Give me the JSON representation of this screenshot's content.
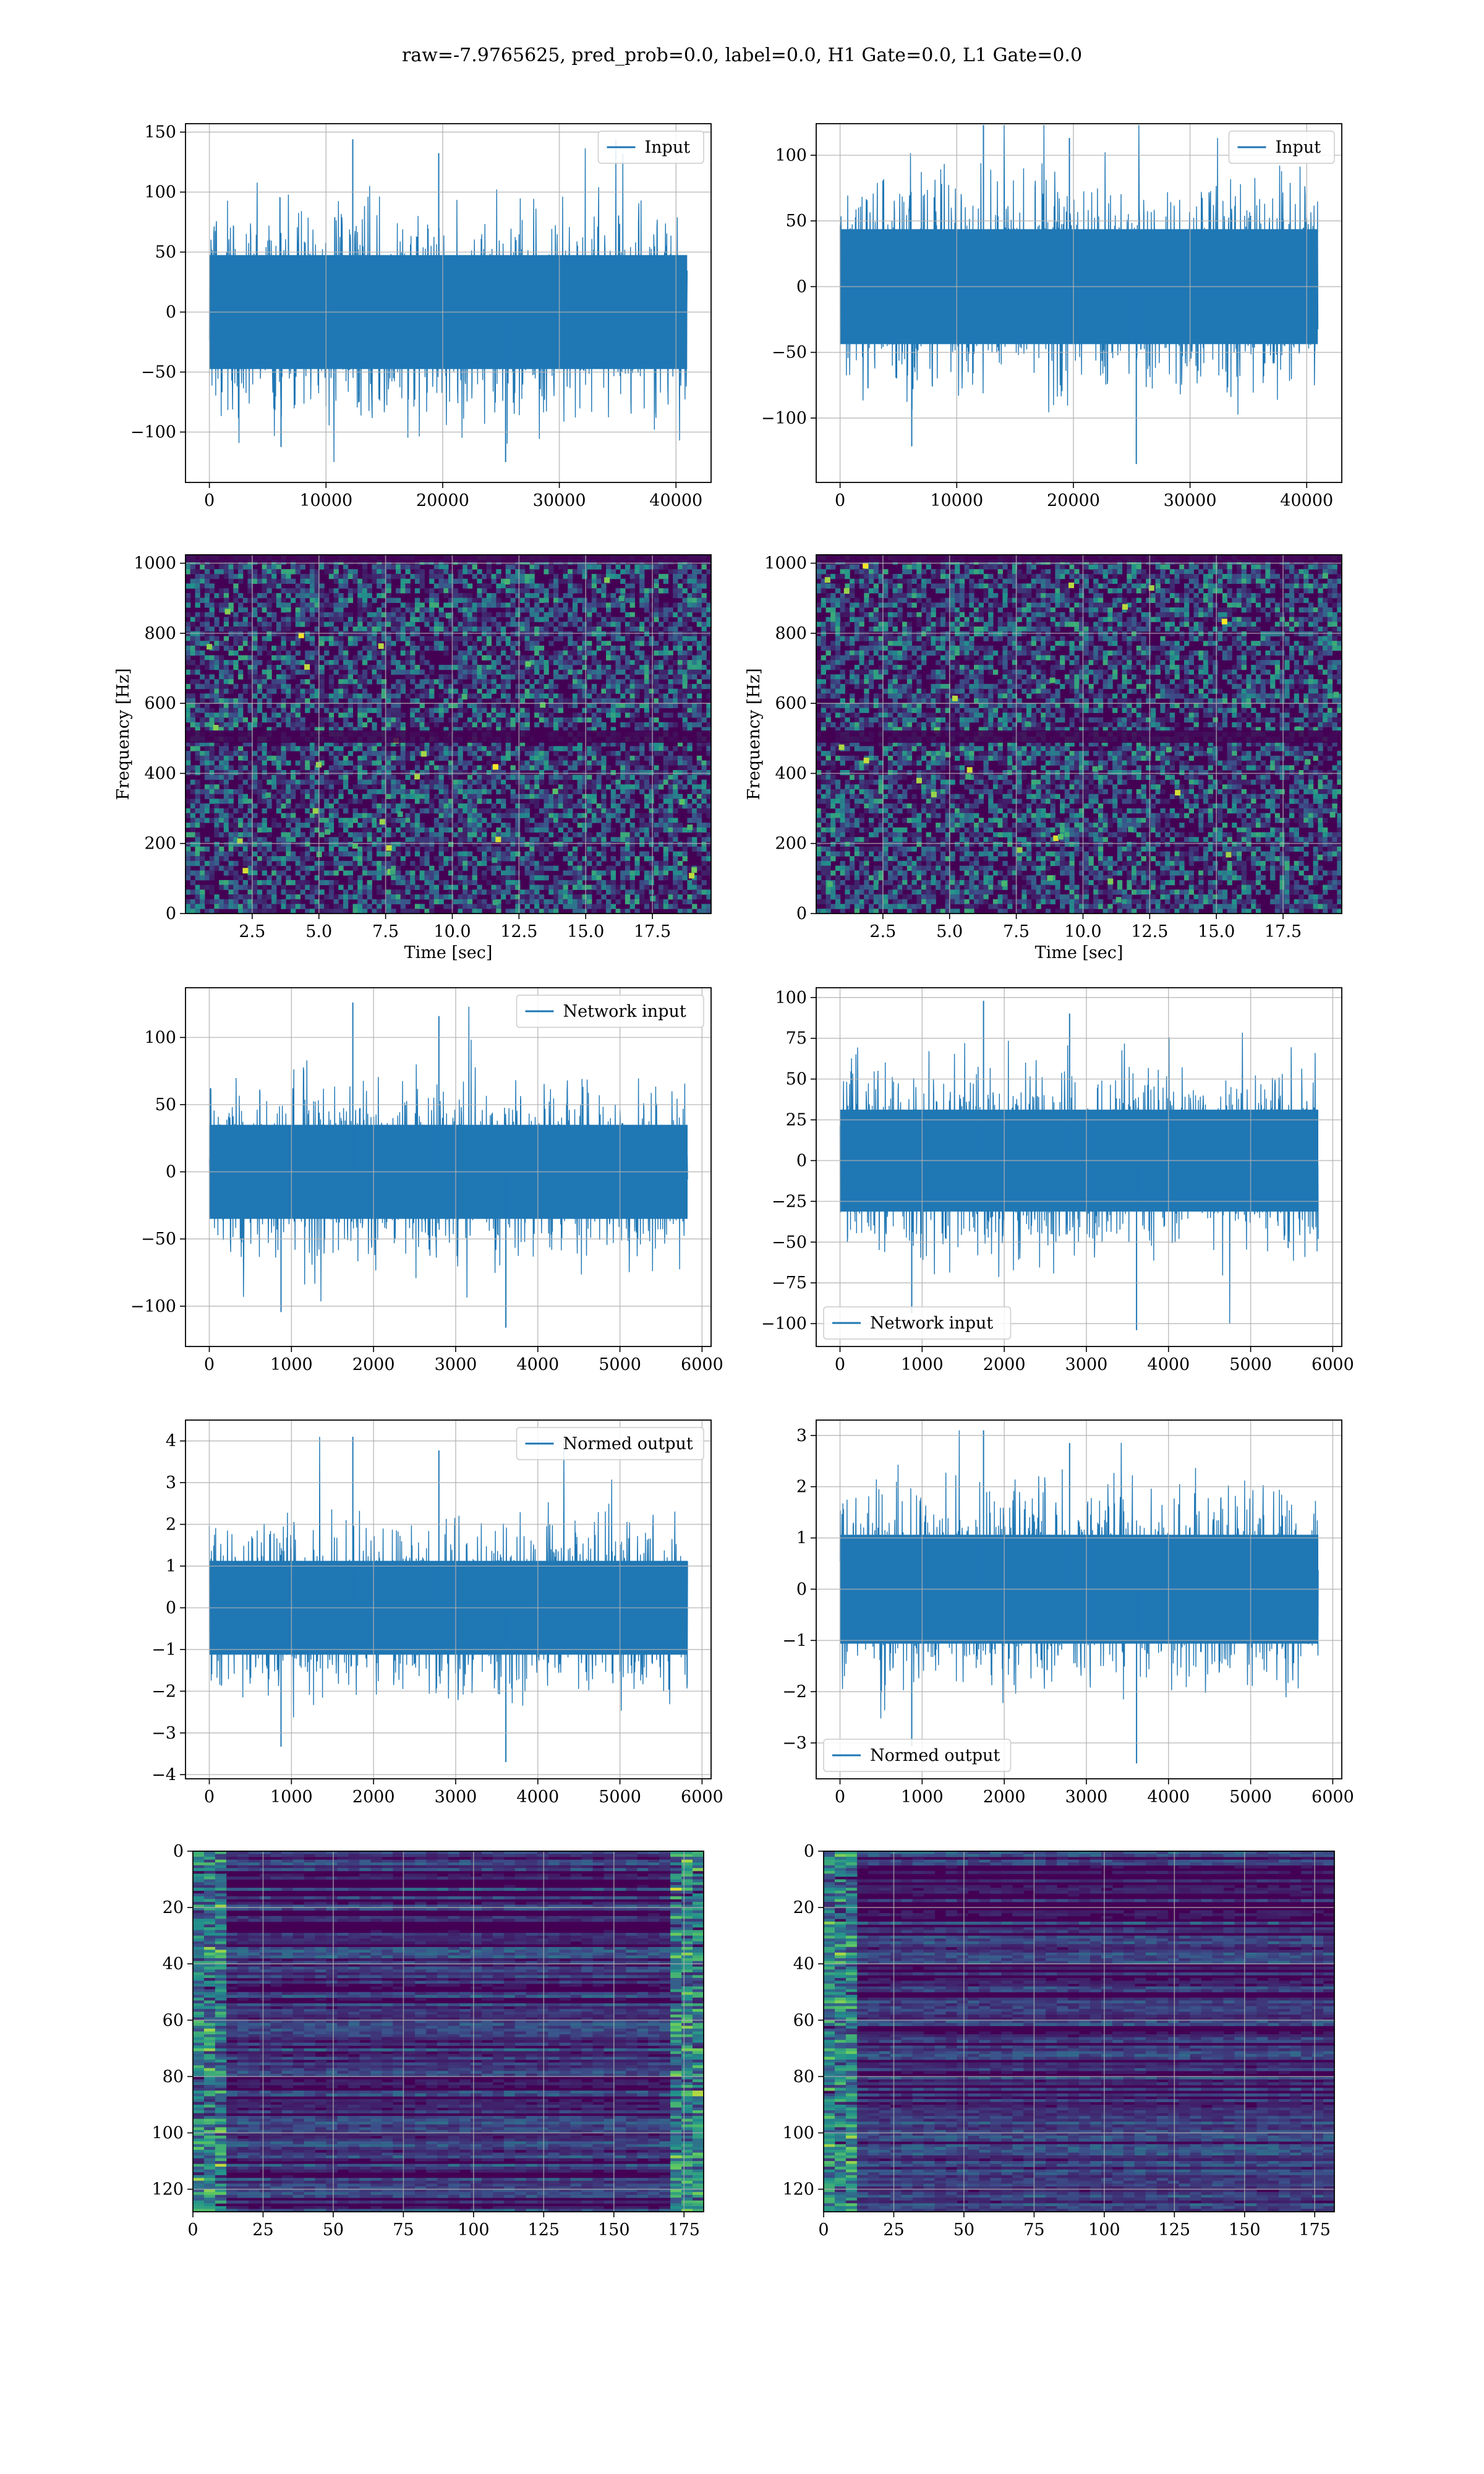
{
  "figure": {
    "suptitle": "raw=-7.9765625, pred_prob=0.0, label=0.0, H1 Gate=0.0, L1 Gate=0.0"
  },
  "colors": {
    "series_blue": "#1f77b4",
    "grid": "#b0b0b0",
    "viridis_dark": "#440154",
    "viridis_purple": "#472c7a",
    "viridis_blue": "#3b528b",
    "viridis_teal": "#21918c",
    "viridis_green": "#5ec962",
    "viridis_yellow": "#fde725"
  },
  "chart_data": [
    {
      "id": "raw-left",
      "type": "line",
      "title": "",
      "xlabel": "",
      "ylabel": "",
      "xlim": [
        -2048,
        43008
      ],
      "ylim": [
        -142,
        157
      ],
      "xticks": [
        0,
        10000,
        20000,
        30000,
        40000
      ],
      "xtick_labels": [
        "0",
        "10000",
        "20000",
        "30000",
        "40000"
      ],
      "yticks": [
        -100,
        -50,
        0,
        50,
        100,
        150
      ],
      "ytick_labels": [
        "−100",
        "−50",
        "0",
        "50",
        "100",
        "150"
      ],
      "grid": true,
      "legend": "upper right",
      "series": [
        {
          "name": "Input",
          "x_range": [
            0,
            40960
          ],
          "envelope": [
            -125,
            144
          ],
          "typical_amplitude": 38
        }
      ]
    },
    {
      "id": "raw-right",
      "type": "line",
      "title": "",
      "xlabel": "",
      "ylabel": "",
      "xlim": [
        -2048,
        43008
      ],
      "ylim": [
        -149,
        124
      ],
      "xticks": [
        0,
        10000,
        20000,
        30000,
        40000
      ],
      "xtick_labels": [
        "0",
        "10000",
        "20000",
        "30000",
        "40000"
      ],
      "yticks": [
        -100,
        -50,
        0,
        50,
        100
      ],
      "ytick_labels": [
        "−100",
        "−50",
        "0",
        "50",
        "100"
      ],
      "grid": true,
      "legend": "upper right",
      "series": [
        {
          "name": "Input",
          "x_range": [
            0,
            40960
          ],
          "envelope": [
            -135,
            123
          ],
          "typical_amplitude": 35
        }
      ]
    },
    {
      "id": "spec-left",
      "type": "heatmap",
      "title": "",
      "xlabel": "Time [sec]",
      "ylabel": "Frequency [Hz]",
      "xlim": [
        0,
        19.7
      ],
      "ylim": [
        0,
        1024
      ],
      "xticks": [
        2.5,
        5.0,
        7.5,
        10.0,
        12.5,
        15.0,
        17.5
      ],
      "xtick_labels": [
        "2.5",
        "5.0",
        "7.5",
        "10.0",
        "12.5",
        "15.0",
        "17.5"
      ],
      "yticks": [
        0,
        200,
        400,
        600,
        800,
        1000
      ],
      "ytick_labels": [
        "0",
        "200",
        "400",
        "600",
        "800",
        "1000"
      ],
      "grid": true,
      "colormap": "viridis",
      "dark_band_hz": 505
    },
    {
      "id": "spec-right",
      "type": "heatmap",
      "title": "",
      "xlabel": "Time [sec]",
      "ylabel": "Frequency [Hz]",
      "xlim": [
        0,
        19.7
      ],
      "ylim": [
        0,
        1024
      ],
      "xticks": [
        2.5,
        5.0,
        7.5,
        10.0,
        12.5,
        15.0,
        17.5
      ],
      "xtick_labels": [
        "2.5",
        "5.0",
        "7.5",
        "10.0",
        "12.5",
        "15.0",
        "17.5"
      ],
      "yticks": [
        0,
        200,
        400,
        600,
        800,
        1000
      ],
      "ytick_labels": [
        "0",
        "200",
        "400",
        "600",
        "800",
        "1000"
      ],
      "grid": true,
      "colormap": "viridis",
      "dark_band_hz": 505
    },
    {
      "id": "net-left",
      "type": "line",
      "title": "",
      "xlabel": "",
      "ylabel": "",
      "xlim": [
        -290,
        6110
      ],
      "ylim": [
        -130,
        137
      ],
      "xticks": [
        0,
        1000,
        2000,
        3000,
        4000,
        5000,
        6000
      ],
      "xtick_labels": [
        "0",
        "1000",
        "2000",
        "3000",
        "4000",
        "5000",
        "6000"
      ],
      "yticks": [
        -100,
        -50,
        0,
        50,
        100
      ],
      "ytick_labels": [
        "−100",
        "−50",
        "0",
        "50",
        "100"
      ],
      "grid": true,
      "legend": "upper right",
      "series": [
        {
          "name": "Network input",
          "x_range": [
            0,
            5824
          ],
          "envelope": [
            -116,
            126
          ],
          "typical_amplitude": 28
        }
      ]
    },
    {
      "id": "net-right",
      "type": "line",
      "title": "",
      "xlabel": "",
      "ylabel": "",
      "xlim": [
        -290,
        6110
      ],
      "ylim": [
        -114,
        106
      ],
      "xticks": [
        0,
        1000,
        2000,
        3000,
        4000,
        5000,
        6000
      ],
      "xtick_labels": [
        "0",
        "1000",
        "2000",
        "3000",
        "4000",
        "5000",
        "6000"
      ],
      "yticks": [
        -100,
        -75,
        -50,
        -25,
        0,
        25,
        50,
        75,
        100
      ],
      "ytick_labels": [
        "−100",
        "−75",
        "−50",
        "−25",
        "0",
        "25",
        "50",
        "75",
        "100"
      ],
      "grid": true,
      "legend": "lower left",
      "series": [
        {
          "name": "Network input",
          "x_range": [
            0,
            5824
          ],
          "envelope": [
            -104,
            98
          ],
          "typical_amplitude": 25
        }
      ]
    },
    {
      "id": "norm-left",
      "type": "line",
      "title": "",
      "xlabel": "",
      "ylabel": "",
      "xlim": [
        -290,
        6110
      ],
      "ylim": [
        -4.1,
        4.5
      ],
      "xticks": [
        0,
        1000,
        2000,
        3000,
        4000,
        5000,
        6000
      ],
      "xtick_labels": [
        "0",
        "1000",
        "2000",
        "3000",
        "4000",
        "5000",
        "6000"
      ],
      "yticks": [
        -4,
        -3,
        -2,
        -1,
        0,
        1,
        2,
        3,
        4
      ],
      "ytick_labels": [
        "−4",
        "−3",
        "−2",
        "−1",
        "0",
        "1",
        "2",
        "3",
        "4"
      ],
      "grid": true,
      "legend": "upper right",
      "series": [
        {
          "name": "Normed output",
          "x_range": [
            0,
            5824
          ],
          "envelope": [
            -3.7,
            4.1
          ],
          "typical_amplitude": 0.9
        }
      ]
    },
    {
      "id": "norm-right",
      "type": "line",
      "title": "",
      "xlabel": "",
      "ylabel": "",
      "xlim": [
        -290,
        6110
      ],
      "ylim": [
        -3.7,
        3.3
      ],
      "xticks": [
        0,
        1000,
        2000,
        3000,
        4000,
        5000,
        6000
      ],
      "xtick_labels": [
        "0",
        "1000",
        "2000",
        "3000",
        "4000",
        "5000",
        "6000"
      ],
      "yticks": [
        -3,
        -2,
        -1,
        0,
        1,
        2,
        3
      ],
      "ytick_labels": [
        "−3",
        "−2",
        "−1",
        "0",
        "1",
        "2",
        "3"
      ],
      "grid": true,
      "legend": "lower left",
      "series": [
        {
          "name": "Normed output",
          "x_range": [
            0,
            5824
          ],
          "envelope": [
            -3.4,
            3.1
          ],
          "typical_amplitude": 0.85
        }
      ]
    },
    {
      "id": "feat-left",
      "type": "heatmap",
      "title": "",
      "xlabel": "",
      "ylabel": "",
      "xlim": [
        0,
        182
      ],
      "ylim": [
        128,
        0
      ],
      "xticks": [
        0,
        25,
        50,
        75,
        100,
        125,
        150,
        175
      ],
      "xtick_labels": [
        "0",
        "25",
        "50",
        "75",
        "100",
        "125",
        "150",
        "175"
      ],
      "yticks": [
        0,
        20,
        40,
        60,
        80,
        100,
        120
      ],
      "ytick_labels": [
        "0",
        "20",
        "40",
        "60",
        "80",
        "100",
        "120"
      ],
      "grid": true,
      "colormap": "viridis",
      "rows": 128,
      "cols": 182
    },
    {
      "id": "feat-right",
      "type": "heatmap",
      "title": "",
      "xlabel": "",
      "ylabel": "",
      "xlim": [
        0,
        182
      ],
      "ylim": [
        128,
        0
      ],
      "xticks": [
        0,
        25,
        50,
        75,
        100,
        125,
        150,
        175
      ],
      "xtick_labels": [
        "0",
        "25",
        "50",
        "75",
        "100",
        "125",
        "150",
        "175"
      ],
      "yticks": [
        0,
        20,
        40,
        60,
        80,
        100,
        120
      ],
      "ytick_labels": [
        "0",
        "20",
        "40",
        "60",
        "80",
        "100",
        "120"
      ],
      "grid": true,
      "colormap": "viridis",
      "rows": 128,
      "cols": 182
    }
  ]
}
